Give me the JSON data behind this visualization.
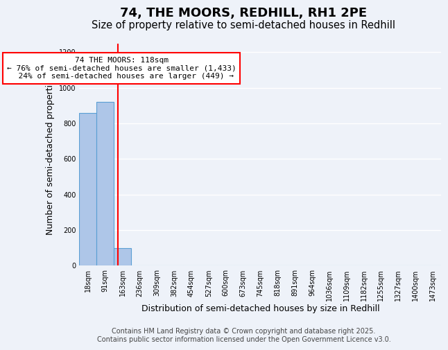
{
  "title": "74, THE MOORS, REDHILL, RH1 2PE",
  "subtitle": "Size of property relative to semi-detached houses in Redhill",
  "xlabel": "Distribution of semi-detached houses by size in Redhill",
  "ylabel": "Number of semi-detached properties",
  "footer_line1": "Contains HM Land Registry data © Crown copyright and database right 2025.",
  "footer_line2": "Contains public sector information licensed under the Open Government Licence v3.0.",
  "bin_labels": [
    "18sqm",
    "91sqm",
    "163sqm",
    "236sqm",
    "309sqm",
    "382sqm",
    "454sqm",
    "527sqm",
    "600sqm",
    "673sqm",
    "745sqm",
    "818sqm",
    "891sqm",
    "964sqm",
    "1036sqm",
    "1109sqm",
    "1182sqm",
    "1255sqm",
    "1327sqm",
    "1400sqm",
    "1473sqm"
  ],
  "bar_values": [
    860,
    920,
    100,
    2,
    0,
    0,
    0,
    0,
    0,
    0,
    0,
    0,
    0,
    0,
    0,
    0,
    0,
    0,
    0,
    0,
    0
  ],
  "bar_color": "#aec6e8",
  "bar_edge_color": "#5a9fd4",
  "ylim": [
    0,
    1250
  ],
  "yticks": [
    0,
    200,
    400,
    600,
    800,
    1000,
    1200
  ],
  "red_line_x": 1.75,
  "annotation_text": "74 THE MOORS: 118sqm\n← 76% of semi-detached houses are smaller (1,433)\n  24% of semi-detached houses are larger (449) →",
  "background_color": "#eef2f9",
  "grid_color": "#ffffff",
  "title_fontsize": 13,
  "subtitle_fontsize": 10.5,
  "axis_label_fontsize": 9,
  "tick_fontsize": 7,
  "annotation_fontsize": 8,
  "footer_fontsize": 7
}
